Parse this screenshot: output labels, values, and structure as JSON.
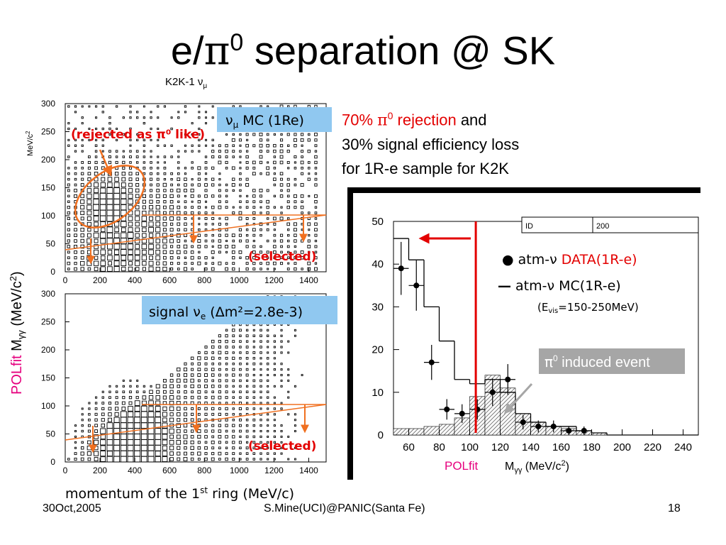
{
  "slide": {
    "title_prefix": "e/",
    "title_pi": "π",
    "title_sup": "0",
    "title_suffix": " separation @ SK",
    "footer_left": "30Oct,2005",
    "footer_center": "S.Mine(UCI)@PANIC(Santa Fe)",
    "footer_right": "18"
  },
  "description": {
    "line1_red": "70% ",
    "line1_pi": "π",
    "line1_sup": "0",
    "line1_red2": " rejection",
    "line1_black": " and",
    "line2": "30% signal efficiency loss",
    "line3": "for 1R-e sample for K2K"
  },
  "colors": {
    "red": "#e30000",
    "orange": "#f07020",
    "magenta": "#e6007e",
    "label_blue": "#90c8f0",
    "gray_box": "#a6a6a6"
  },
  "scatter": {
    "top_title": "K2K-1 ν",
    "top_title_sub": "μ",
    "yunit": "MeV/c",
    "yunit_sup": "2",
    "top_label_pre": "ν",
    "top_label_sub": "μ",
    "top_label_post": " MC (1Re)",
    "bottom_label_pre": "signal ν",
    "bottom_label_sub": "e",
    "bottom_label_post": " (Δm²=2.8e-3)",
    "rejected_label": "(rejected as π⁰ like)",
    "selected_label": "(selected)",
    "xaxis_label_pre": "momentum of the 1",
    "xaxis_label_sup": "st",
    "xaxis_label_post": " ring (MeV/c)",
    "yaxis_label_polfit": "POLfit",
    "yaxis_label_m": "M",
    "yaxis_label_sub": "γγ",
    "yaxis_label_unit": " (MeV/c",
    "yaxis_label_unit_sup": "2",
    "yaxis_label_close": ")"
  },
  "histogram": {
    "id_label": "ID",
    "id_value": "200",
    "legend_data_marker": "●",
    "legend_data_pre": " atm-ν ",
    "legend_data_red": "DATA(1R-e)",
    "legend_mc_marker": "—",
    "legend_mc_text": " atm-ν MC(1R-e)",
    "evis_note": "(E",
    "evis_sub": "vis",
    "evis_range": "=150-250MeV)",
    "pi0_box_pi": "π",
    "pi0_box_sup": "0",
    "pi0_box_text": " induced event",
    "xlabel_polfit": "POLfit",
    "xlabel_m": "M",
    "xlabel_sub": "γγ",
    "xlabel_unit": " (MeV/c",
    "xlabel_unit_sup": "2",
    "xlabel_close": ")"
  },
  "chart_data": [
    {
      "type": "scatter",
      "title": "K2K-1 νμ",
      "series_name": "νμ MC (1Re)",
      "xlim": [
        0,
        1500
      ],
      "ylim": [
        0,
        300
      ],
      "xticks": [
        "0",
        "200",
        "400",
        "600",
        "800",
        "1000",
        "1200",
        "1400"
      ],
      "yticks": [
        "0",
        "50",
        "100",
        "150",
        "200",
        "250",
        "300"
      ],
      "cut_line_y": 100,
      "note": "box-plot density of MC events; dense cluster near momentum 200-500 MeV/c, mass 90-180 MeV/c²"
    },
    {
      "type": "scatter",
      "series_name": "signal νe (Δm²=2.8e-3)",
      "xlim": [
        0,
        1500
      ],
      "ylim": [
        0,
        300
      ],
      "xticks": [
        "0",
        "200",
        "400",
        "600",
        "800",
        "1000",
        "1200",
        "1400"
      ],
      "yticks": [
        "0",
        "50",
        "100",
        "150",
        "200",
        "250",
        "300"
      ],
      "cut_line_y": 100,
      "note": "box-plot density of signal events; mostly below 100 MeV/c², dense near 300-500 MeV/c"
    },
    {
      "type": "bar",
      "title": "",
      "xlabel": "POLfit Mγγ (MeV/c²)",
      "ylabel": "",
      "xlim": [
        50,
        250
      ],
      "ylim": [
        0,
        50
      ],
      "xticks": [
        "60",
        "80",
        "100",
        "120",
        "140",
        "160",
        "180",
        "200",
        "220",
        "240"
      ],
      "yticks": [
        "0",
        "10",
        "20",
        "30",
        "40",
        "50"
      ],
      "bin_width": 10,
      "series": [
        {
          "name": "atm-ν MC(1R-e)",
          "x": [
            50,
            60,
            70,
            80,
            90,
            100,
            110,
            120,
            130,
            140,
            150,
            160,
            170,
            180,
            190,
            200,
            210,
            220,
            230,
            240
          ],
          "values": [
            46,
            41,
            30,
            22,
            13,
            12,
            13,
            10,
            5,
            3,
            2,
            2,
            1,
            0.5,
            0,
            0,
            0,
            0,
            0,
            0
          ]
        },
        {
          "name": "π0 induced event",
          "x": [
            50,
            60,
            70,
            80,
            90,
            100,
            110,
            120,
            130,
            140,
            150,
            160,
            170,
            180,
            190,
            200,
            210,
            220,
            230,
            240
          ],
          "values": [
            1.5,
            1.5,
            2,
            2.5,
            4,
            9,
            14,
            11,
            5,
            3,
            2,
            1.5,
            1,
            0.5,
            0,
            0,
            0,
            0,
            0,
            0
          ]
        },
        {
          "name": "atm-ν DATA(1R-e)",
          "x": [
            55,
            65,
            75,
            85,
            95,
            105,
            115,
            125,
            135,
            145,
            155,
            165,
            175
          ],
          "values": [
            39,
            35,
            17,
            6,
            5,
            6,
            10,
            13,
            3,
            2,
            2,
            1,
            1
          ],
          "errors": [
            6.2,
            5.9,
            4.1,
            2.4,
            2.2,
            2.4,
            3.2,
            3.6,
            1.7,
            1.4,
            1.4,
            1.0,
            1.0
          ]
        }
      ],
      "cut_x": 104
    }
  ]
}
